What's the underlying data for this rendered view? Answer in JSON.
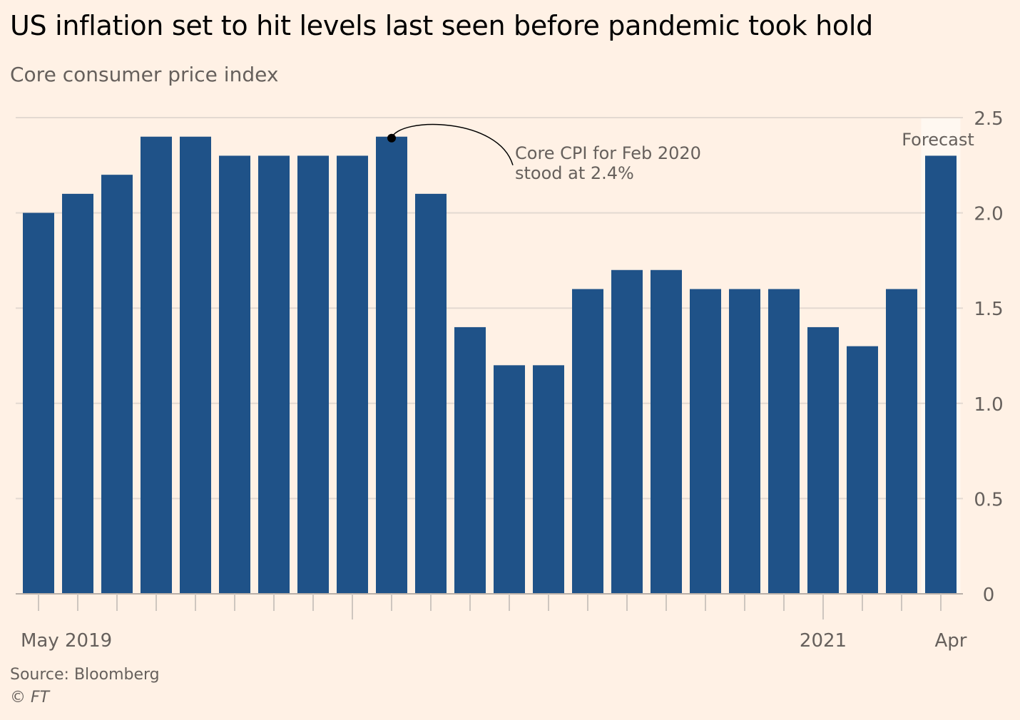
{
  "title": "US inflation set to hit levels last seen before pandemic took hold",
  "subtitle": "Core consumer price index",
  "source": "Source: Bloomberg",
  "copyright": "©",
  "copyright_brand": "FT",
  "colors": {
    "background": "#FFF1E5",
    "bar": "#1F5288",
    "gridline": "#E3D9D1",
    "forecast_band": "#FFF8F1",
    "axis_text": "#66605C"
  },
  "chart_data": {
    "type": "bar",
    "categories": [
      "May 2019",
      "Jun 2019",
      "Jul 2019",
      "Aug 2019",
      "Sep 2019",
      "Oct 2019",
      "Nov 2019",
      "Dec 2019",
      "Jan 2020",
      "Feb 2020",
      "Mar 2020",
      "Apr 2020",
      "May 2020",
      "Jun 2020",
      "Jul 2020",
      "Aug 2020",
      "Sep 2020",
      "Oct 2020",
      "Nov 2020",
      "Dec 2020",
      "Jan 2021",
      "Feb 2021",
      "Mar 2021",
      "Apr 2021"
    ],
    "values": [
      2.0,
      2.1,
      2.2,
      2.4,
      2.4,
      2.3,
      2.3,
      2.3,
      2.3,
      2.4,
      2.1,
      1.4,
      1.2,
      1.2,
      1.6,
      1.7,
      1.7,
      1.6,
      1.6,
      1.6,
      1.4,
      1.3,
      1.6,
      2.3
    ],
    "ylim": [
      0,
      2.5
    ],
    "yticks": [
      0,
      0.5,
      1.0,
      1.5,
      2.0,
      2.5
    ],
    "ytick_labels": [
      "0",
      "0.5",
      "1.0",
      "1.5",
      "2.0",
      "2.5"
    ],
    "y_axis_side": "right",
    "grid": true,
    "xtick_labels": [
      {
        "index": 0,
        "label": "May 2019"
      },
      {
        "index": 20,
        "label": "2021"
      },
      {
        "index": 23,
        "label": "Apr"
      }
    ],
    "forecast": {
      "index": 23,
      "label": "Forecast"
    },
    "annotation": {
      "index": 9,
      "lines": [
        "Core CPI for Feb 2020",
        "stood at 2.4%"
      ]
    }
  }
}
